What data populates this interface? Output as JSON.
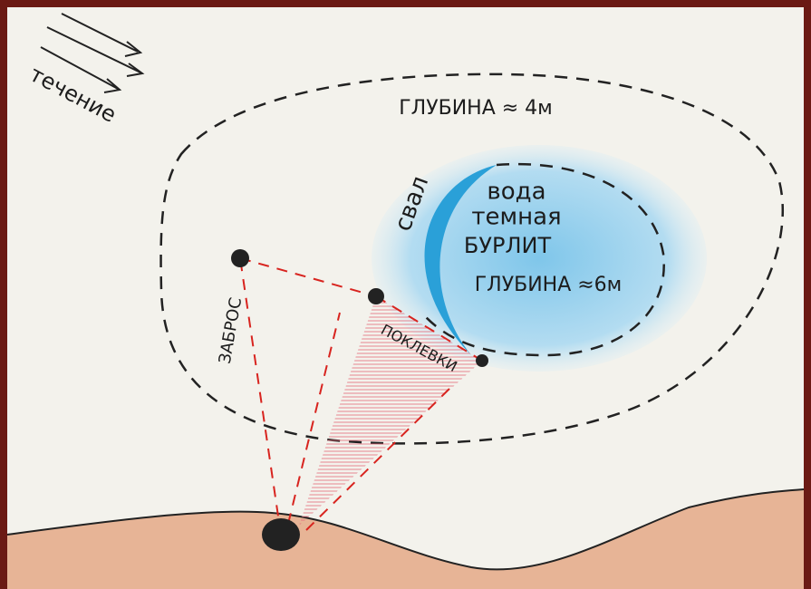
{
  "labels": {
    "current": "течение",
    "outer_depth": "ГЛУБИНА ≈ 4м",
    "dropoff": "свал",
    "water_line1": "вода",
    "water_line2": "темная",
    "water_line3": "БУРЛИТ",
    "inner_depth": "ГЛУБИНА ≈6м",
    "cast": "ЗАБРОС",
    "bites": "ПОКЛЕВКИ"
  }
}
